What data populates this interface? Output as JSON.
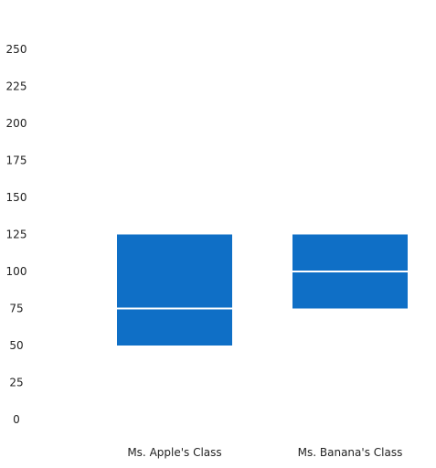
{
  "colors": {
    "box_fill": "#0f6fc6",
    "median_line": "#ffffff",
    "text": "#222222"
  },
  "chart_data": {
    "type": "box",
    "title": "",
    "xlabel": "",
    "ylabel": "",
    "ylim": [
      0,
      250
    ],
    "yticks": [
      0,
      25,
      50,
      75,
      100,
      125,
      150,
      175,
      200,
      225,
      250
    ],
    "ytick_labels": [
      "0",
      "25",
      "50",
      "75",
      "100",
      "125",
      "150",
      "175",
      "200",
      "225",
      "250"
    ],
    "grid": false,
    "legend": "none",
    "categories": [
      "Ms. Apple's Class",
      "Ms. Banana's Class"
    ],
    "boxes": [
      {
        "category": "Ms. Apple's Class",
        "q1": 50,
        "median": 75,
        "q3": 125
      },
      {
        "category": "Ms. Banana's Class",
        "q1": 75,
        "median": 100,
        "q3": 125
      }
    ]
  }
}
